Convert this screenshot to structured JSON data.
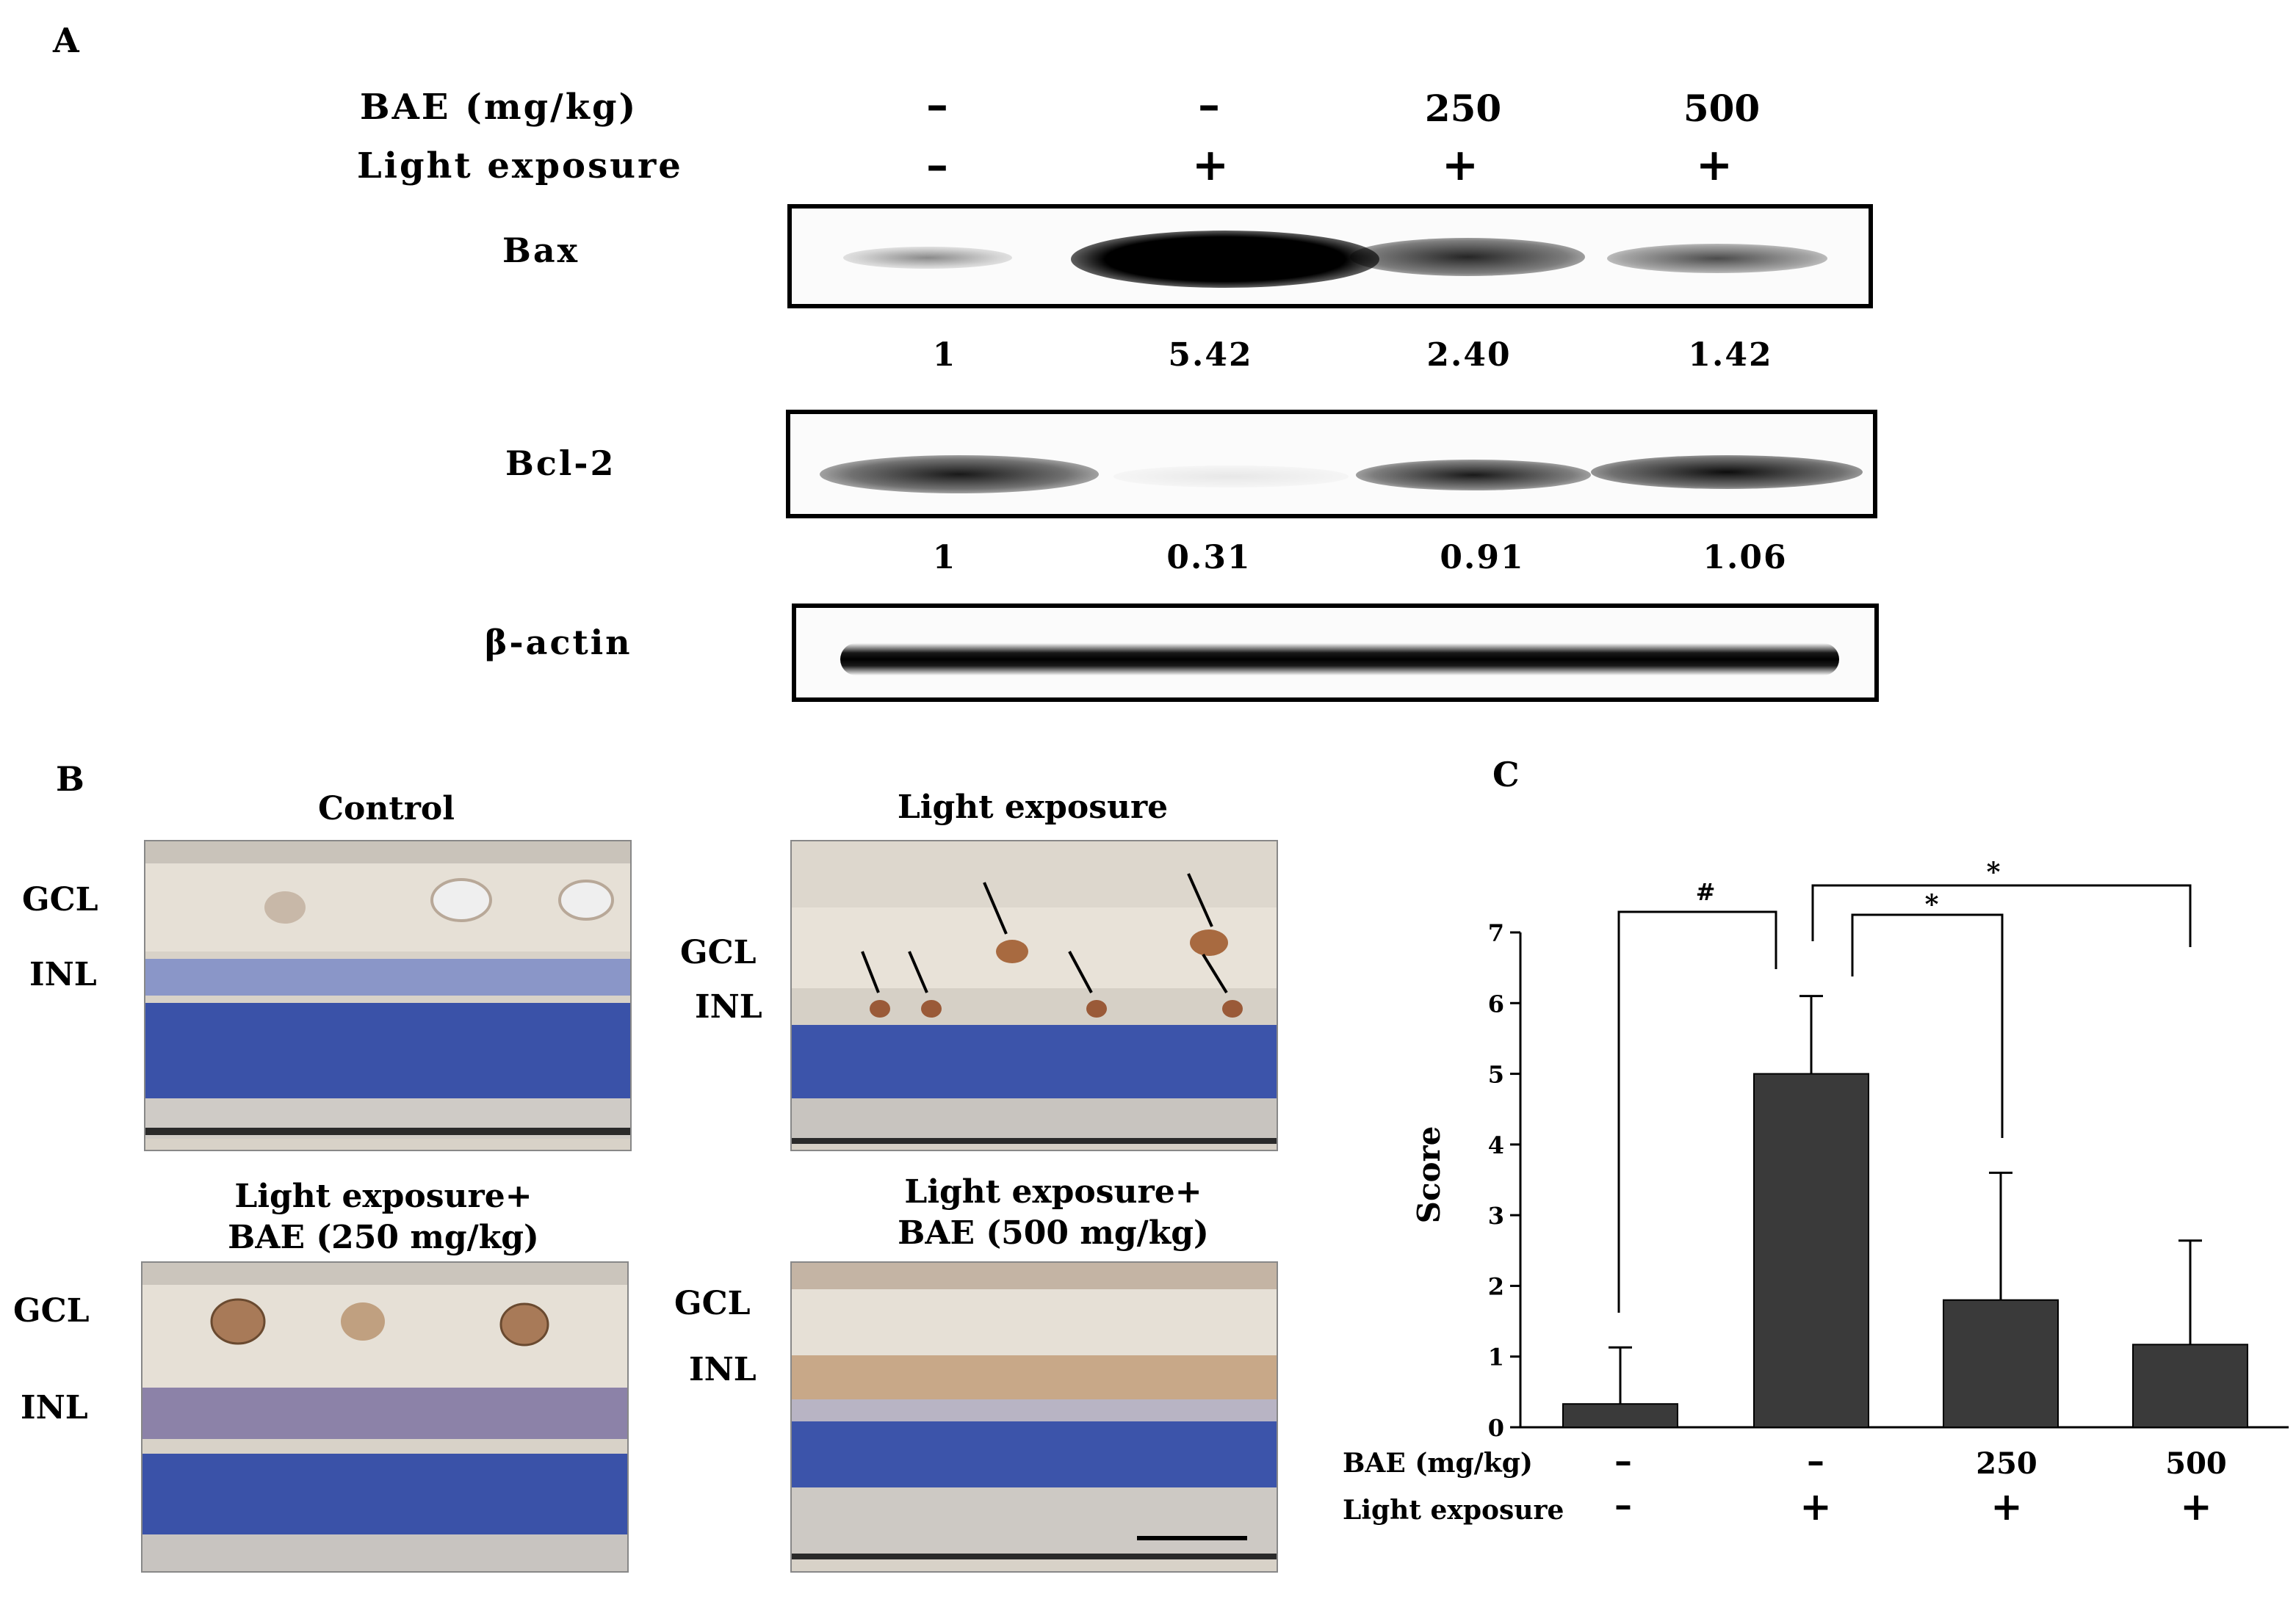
{
  "panel_a": {
    "letter": "A",
    "treatments": {
      "bae_label": "BAE (mg/kg)",
      "light_label": "Light exposure",
      "bae_values": [
        "–",
        "–",
        "250",
        "500"
      ],
      "light_values": [
        "–",
        "+",
        "+",
        "+"
      ]
    },
    "blots": [
      {
        "label": "Bax",
        "quant": [
          "1",
          "5.42",
          "2.40",
          "1.42"
        ]
      },
      {
        "label": "Bcl-2",
        "quant": [
          "1",
          "0.31",
          "0.91",
          "1.06"
        ]
      },
      {
        "label": "β-actin"
      }
    ]
  },
  "panel_b": {
    "letter": "B",
    "images": [
      {
        "title": "Control",
        "gcl": "GCL",
        "inl": "INL"
      },
      {
        "title": "Light exposure",
        "gcl": "GCL",
        "inl": "INL"
      },
      {
        "title_line1": "Light exposure+",
        "title_line2": "BAE (250 mg/kg)",
        "gcl": "GCL",
        "inl": "INL"
      },
      {
        "title_line1": "Light exposure+",
        "title_line2": "BAE (500 mg/kg)",
        "gcl": "GCL",
        "inl": "INL"
      }
    ]
  },
  "panel_c": {
    "letter": "C",
    "significance": [
      "#",
      "*",
      "*"
    ],
    "row_labels": {
      "bae": "BAE (mg/kg)",
      "light": "Light exposure"
    },
    "bae_values": [
      "–",
      "–",
      "250",
      "500"
    ],
    "light_values": [
      "–",
      "+",
      "+",
      "+"
    ]
  },
  "chart_data": {
    "type": "bar",
    "categories": [
      "1",
      "2",
      "3",
      "4"
    ],
    "values": [
      0.33,
      5.0,
      1.8,
      1.17
    ],
    "errors": [
      0.8,
      1.1,
      1.8,
      1.47
    ],
    "ylabel": "Score",
    "ylim": [
      0,
      7
    ],
    "yticks": [
      0,
      1,
      2,
      3,
      4,
      5,
      6,
      7
    ],
    "bar_color": "#3a3a3a"
  }
}
